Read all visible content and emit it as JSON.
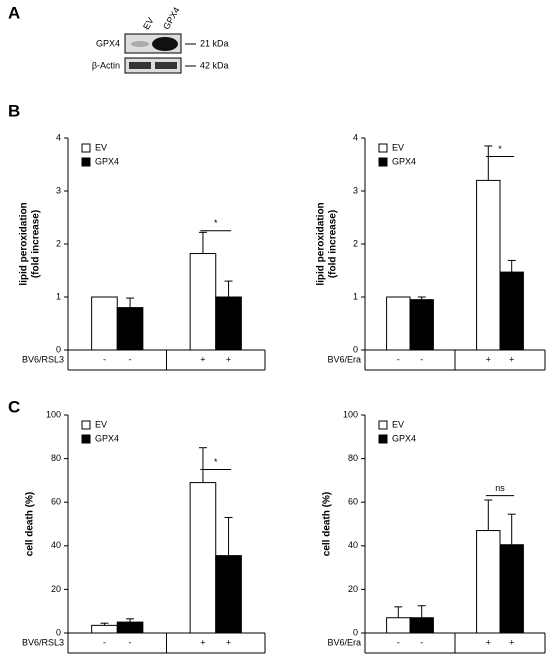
{
  "panels": [
    "A",
    "B",
    "C"
  ],
  "blot": {
    "lanes": [
      "EV",
      "GPX4"
    ],
    "rows": [
      "GPX4",
      "β-Actin"
    ],
    "sizes": [
      "21 kDa",
      "42 kDa"
    ]
  },
  "chart_data": [
    {
      "type": "bar",
      "ylabel": [
        "lipid peroxidation",
        "(fold increase)"
      ],
      "treatment": "BV6/RSL3",
      "categories": [
        "-",
        "+"
      ],
      "series": [
        {
          "name": "EV",
          "color": "#ffffff",
          "values": [
            1,
            1.82
          ],
          "errors": [
            0,
            0.4
          ]
        },
        {
          "name": "GPX4",
          "color": "#000000",
          "values": [
            0.8,
            1.0
          ],
          "errors": [
            0.18,
            0.3
          ]
        }
      ],
      "ylim": [
        0,
        4
      ],
      "yticks": [
        0,
        1,
        2,
        3,
        4
      ],
      "annotations": [
        {
          "text": "*",
          "category": 1,
          "y": 2.25
        }
      ]
    },
    {
      "type": "bar",
      "ylabel": [
        "lipid peroxidation",
        "(fold increase)"
      ],
      "treatment": "BV6/Era",
      "categories": [
        "-",
        "+"
      ],
      "series": [
        {
          "name": "EV",
          "color": "#ffffff",
          "values": [
            1,
            3.2
          ],
          "errors": [
            0,
            0.65
          ]
        },
        {
          "name": "GPX4",
          "color": "#000000",
          "values": [
            0.95,
            1.47
          ],
          "errors": [
            0.05,
            0.22
          ]
        }
      ],
      "ylim": [
        0,
        4
      ],
      "yticks": [
        0,
        1,
        2,
        3,
        4
      ],
      "annotations": [
        {
          "text": "*",
          "category": 1,
          "y": 3.65
        }
      ]
    },
    {
      "type": "bar",
      "ylabel": [
        "cell death (%)"
      ],
      "treatment": "BV6/RSL3",
      "categories": [
        "-",
        "+"
      ],
      "series": [
        {
          "name": "EV",
          "color": "#ffffff",
          "values": [
            3.5,
            69
          ],
          "errors": [
            1,
            16
          ]
        },
        {
          "name": "GPX4",
          "color": "#000000",
          "values": [
            5,
            35.5
          ],
          "errors": [
            1.5,
            17.5
          ]
        }
      ],
      "ylim": [
        0,
        100
      ],
      "yticks": [
        0,
        20,
        40,
        60,
        80,
        100
      ],
      "annotations": [
        {
          "text": "*",
          "category": 1,
          "y": 75
        }
      ]
    },
    {
      "type": "bar",
      "ylabel": [
        "cell death (%)"
      ],
      "treatment": "BV6/Era",
      "categories": [
        "-",
        "+"
      ],
      "series": [
        {
          "name": "EV",
          "color": "#ffffff",
          "values": [
            7,
            47
          ],
          "errors": [
            5,
            14
          ]
        },
        {
          "name": "GPX4",
          "color": "#000000",
          "values": [
            7,
            40.5
          ],
          "errors": [
            5.5,
            14
          ]
        }
      ],
      "ylim": [
        0,
        100
      ],
      "yticks": [
        0,
        20,
        40,
        60,
        80,
        100
      ],
      "annotations": [
        {
          "text": "ns",
          "category": 1,
          "y": 63
        }
      ]
    }
  ]
}
